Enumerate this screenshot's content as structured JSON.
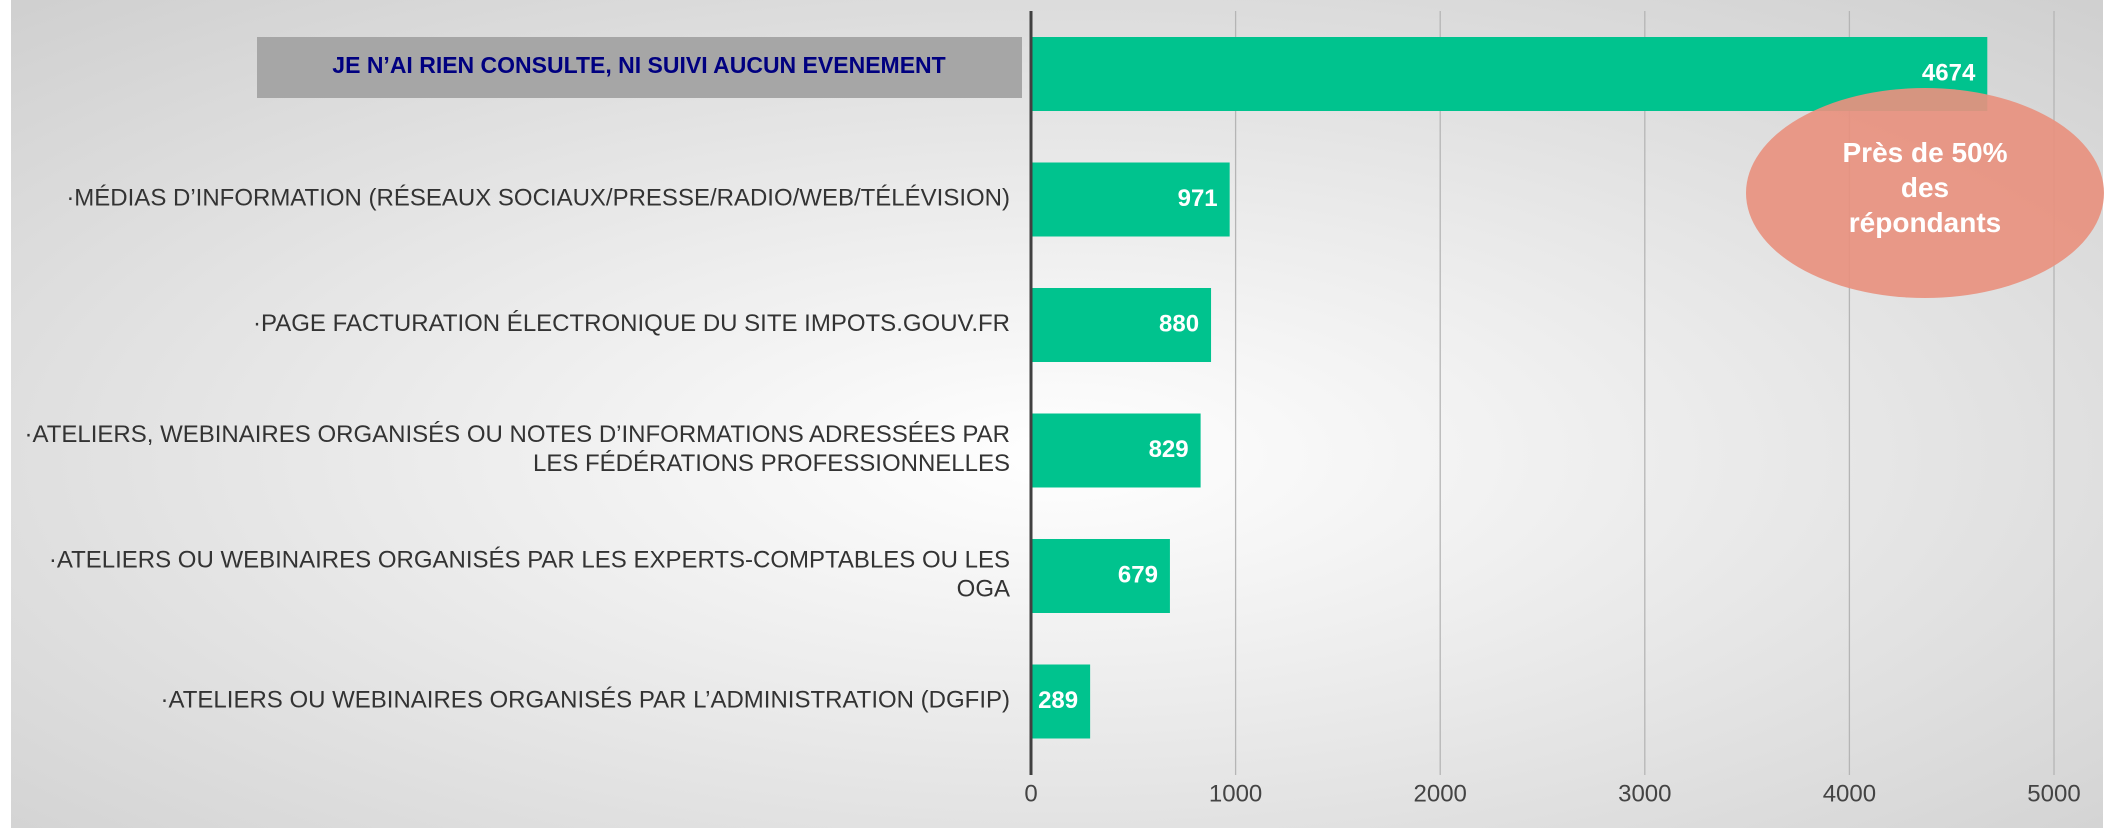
{
  "chart_data": {
    "type": "barh",
    "categories": [
      "JE N’AI RIEN CONSULTE, NI SUIVI AUCUN EVENEMENT",
      "·MÉDIAS D’INFORMATION (RÉSEAUX SOCIAUX/PRESSE/RADIO/WEB/TÉLÉVISION)",
      "·PAGE FACTURATION ÉLECTRONIQUE DU SITE IMPOTS.GOUV.FR",
      "·ATELIERS, WEBINAIRES ORGANISÉS OU NOTES D’INFORMATIONS ADRESSÉES PAR\nLES FÉDÉRATIONS PROFESSIONNELLES",
      "·ATELIERS OU WEBINAIRES ORGANISÉS PAR LES EXPERTS-COMPTABLES OU LES\nOGA",
      "·ATELIERS OU WEBINAIRES ORGANISÉS PAR L’ADMINISTRATION (DGFIP)"
    ],
    "values": [
      4674,
      971,
      880,
      829,
      679,
      289
    ],
    "color": "#00c38e",
    "highlight": 0,
    "xlim": [
      0,
      5000
    ],
    "xticks": [
      0,
      1000,
      2000,
      3000,
      4000,
      5000
    ],
    "grid": true,
    "annotation": {
      "text": "Près de 50%\ndes\nrépondants",
      "color": "#e8917f"
    }
  }
}
